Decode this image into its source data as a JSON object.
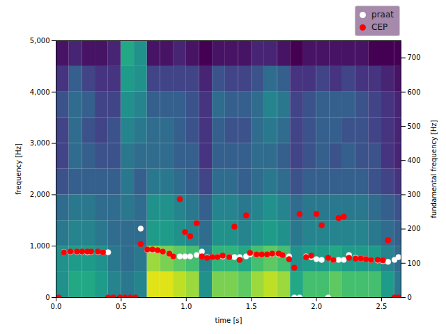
{
  "chart_data": {
    "type": "spectrogram",
    "xlabel": "time [s]",
    "ylabel": "frequency [Hz]",
    "y2label": "fundamental frequency [Hz]",
    "xlim": [
      0,
      2.65
    ],
    "xticks": [
      {
        "value": 0,
        "label": "0.0"
      },
      {
        "value": 0.5,
        "label": "0.5"
      },
      {
        "value": 1,
        "label": "1.0"
      },
      {
        "value": 1.5,
        "label": "1.5"
      },
      {
        "value": 2,
        "label": "2.0"
      },
      {
        "value": 2.5,
        "label": "2.5"
      }
    ],
    "ylim": [
      0,
      5000
    ],
    "yticks": [
      0,
      1000,
      2000,
      3000,
      4000,
      5000
    ],
    "y2lim": [
      0,
      750
    ],
    "y2ticks": [
      0,
      100,
      200,
      300,
      400,
      500,
      600,
      700
    ],
    "legend": "upper right",
    "spectrogram": {
      "time_bins": [
        0,
        0.1,
        0.2,
        0.3,
        0.4,
        0.5,
        0.6,
        0.7,
        0.8,
        0.9,
        1.0,
        1.1,
        1.2,
        1.3,
        1.4,
        1.5,
        1.6,
        1.7,
        1.8,
        1.9,
        2.0,
        2.1,
        2.2,
        2.3,
        2.4,
        2.5,
        2.6
      ],
      "frequency_bins": [
        0,
        500,
        1000,
        1500,
        2000,
        2500,
        3000,
        3500,
        4000,
        4500
      ],
      "zlim": [
        0,
        1
      ],
      "power": [
        [
          0.5,
          0.6,
          0.6,
          0.55,
          0.45,
          0.4,
          0.45,
          0.95,
          0.95,
          0.9,
          0.85,
          0.5,
          0.8,
          0.8,
          0.75,
          0.85,
          0.9,
          0.85,
          0.6,
          0.7,
          0.7,
          0.75,
          0.7,
          0.7,
          0.7,
          0.55,
          0.4
        ],
        [
          0.5,
          0.55,
          0.55,
          0.5,
          0.4,
          0.35,
          0.4,
          0.85,
          0.8,
          0.75,
          0.7,
          0.45,
          0.65,
          0.65,
          0.6,
          0.7,
          0.75,
          0.7,
          0.5,
          0.55,
          0.55,
          0.6,
          0.55,
          0.55,
          0.55,
          0.45,
          0.35
        ],
        [
          0.4,
          0.45,
          0.45,
          0.4,
          0.35,
          0.35,
          0.35,
          0.55,
          0.55,
          0.5,
          0.45,
          0.35,
          0.5,
          0.5,
          0.45,
          0.5,
          0.55,
          0.5,
          0.4,
          0.45,
          0.45,
          0.45,
          0.45,
          0.45,
          0.4,
          0.35,
          0.3
        ],
        [
          0.35,
          0.4,
          0.4,
          0.35,
          0.35,
          0.4,
          0.35,
          0.5,
          0.5,
          0.45,
          0.4,
          0.3,
          0.45,
          0.45,
          0.4,
          0.45,
          0.5,
          0.45,
          0.35,
          0.4,
          0.4,
          0.4,
          0.4,
          0.4,
          0.35,
          0.3,
          0.25
        ],
        [
          0.25,
          0.3,
          0.3,
          0.3,
          0.3,
          0.4,
          0.3,
          0.4,
          0.4,
          0.35,
          0.3,
          0.2,
          0.35,
          0.35,
          0.3,
          0.35,
          0.4,
          0.35,
          0.25,
          0.3,
          0.3,
          0.3,
          0.3,
          0.3,
          0.25,
          0.2,
          0.15
        ],
        [
          0.2,
          0.35,
          0.3,
          0.25,
          0.25,
          0.4,
          0.35,
          0.35,
          0.35,
          0.3,
          0.3,
          0.15,
          0.3,
          0.3,
          0.3,
          0.35,
          0.35,
          0.3,
          0.2,
          0.25,
          0.3,
          0.25,
          0.3,
          0.25,
          0.25,
          0.15,
          0.1
        ],
        [
          0.2,
          0.35,
          0.25,
          0.2,
          0.25,
          0.45,
          0.4,
          0.35,
          0.35,
          0.3,
          0.25,
          0.15,
          0.3,
          0.25,
          0.25,
          0.35,
          0.4,
          0.35,
          0.2,
          0.25,
          0.3,
          0.3,
          0.25,
          0.25,
          0.2,
          0.15,
          0.1
        ],
        [
          0.25,
          0.35,
          0.3,
          0.2,
          0.2,
          0.5,
          0.45,
          0.3,
          0.3,
          0.3,
          0.25,
          0.15,
          0.35,
          0.3,
          0.3,
          0.35,
          0.45,
          0.4,
          0.2,
          0.25,
          0.3,
          0.3,
          0.3,
          0.25,
          0.2,
          0.15,
          0.1
        ],
        [
          0.15,
          0.3,
          0.2,
          0.15,
          0.15,
          0.55,
          0.5,
          0.2,
          0.2,
          0.2,
          0.2,
          0.1,
          0.25,
          0.2,
          0.2,
          0.25,
          0.35,
          0.3,
          0.15,
          0.15,
          0.2,
          0.15,
          0.2,
          0.15,
          0.15,
          0.1,
          0.05
        ],
        [
          0.05,
          0.1,
          0.05,
          0.05,
          0.1,
          0.6,
          0.5,
          0.05,
          0.05,
          0.1,
          0.05,
          0,
          0.05,
          0.05,
          0.05,
          0.1,
          0.1,
          0.05,
          0,
          0.05,
          0.05,
          0.05,
          0.05,
          0.05,
          0,
          0,
          0
        ]
      ]
    },
    "x": [
      0.02,
      0.06,
      0.11,
      0.16,
      0.2,
      0.24,
      0.27,
      0.32,
      0.36,
      0.4,
      0.44,
      0.49,
      0.53,
      0.57,
      0.61,
      0.65,
      0.7,
      0.74,
      0.78,
      0.82,
      0.87,
      0.9,
      0.95,
      0.99,
      1.03,
      1.08,
      1.12,
      1.16,
      1.2,
      1.24,
      1.28,
      1.33,
      1.37,
      1.41,
      1.46,
      1.49,
      1.54,
      1.58,
      1.62,
      1.66,
      1.71,
      1.74,
      1.79,
      1.83,
      1.87,
      1.92,
      1.96,
      2.0,
      2.04,
      2.09,
      2.13,
      2.17,
      2.21,
      2.25,
      2.3,
      2.34,
      2.38,
      2.42,
      2.47,
      2.51,
      2.55,
      2.6,
      2.63
    ],
    "series": [
      {
        "name": "praat",
        "color": "white",
        "marker": "o",
        "axis": "y2",
        "values": [
          null,
          133,
          133,
          133,
          133,
          132,
          133,
          133,
          132,
          132,
          null,
          null,
          null,
          null,
          null,
          201,
          139,
          138,
          137,
          134,
          128,
          120,
          120,
          120,
          120,
          124,
          134,
          118,
          118,
          118,
          120,
          118,
          118,
          118,
          120,
          126,
          126,
          126,
          126,
          127,
          126,
          124,
          120,
          0,
          0,
          120,
          118,
          112,
          110,
          0,
          110,
          110,
          110,
          124,
          116,
          114,
          112,
          110,
          108,
          106,
          104,
          110,
          118
        ]
      },
      {
        "name": "CEP",
        "color": "red",
        "marker": "o",
        "axis": "y2",
        "values": [
          0,
          132,
          134,
          134,
          134,
          134,
          134,
          134,
          132,
          0,
          0,
          0,
          0,
          0,
          0,
          156,
          140,
          140,
          138,
          134,
          128,
          120,
          287,
          191,
          179,
          217,
          120,
          116,
          118,
          118,
          122,
          118,
          207,
          110,
          240,
          130,
          126,
          126,
          126,
          128,
          128,
          124,
          112,
          87,
          244,
          118,
          122,
          244,
          211,
          116,
          110,
          232,
          236,
          116,
          114,
          114,
          112,
          110,
          110,
          108,
          167,
          0,
          0
        ]
      }
    ]
  }
}
